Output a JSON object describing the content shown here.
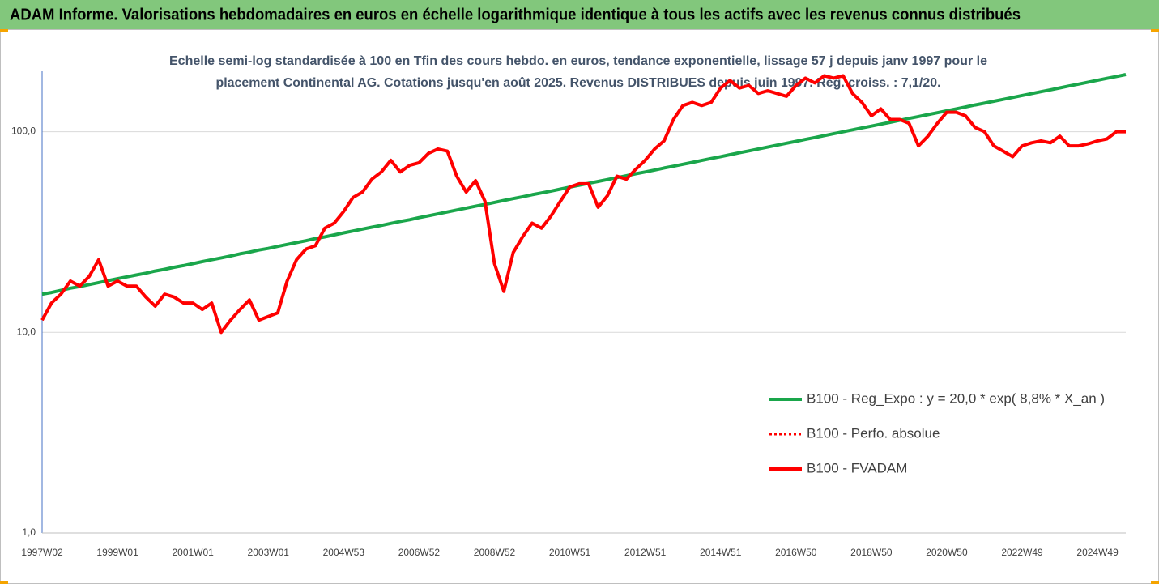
{
  "chart_data": {
    "type": "line",
    "title": "ADAM Informe. Valorisations hebdomadaires en euros en échelle logarithmique identique à tous les actifs avec les revenus connus distribués",
    "subtitle": [
      "Echelle semi-log standardisée à 100 en Tfin des cours hebdo. en euros, tendance exponentielle, lissage 57 j depuis janv 1997 pour le",
      "placement Continental AG. Cotations jusqu'en août 2025. Revenus DISTRIBUES depuis juin 1997. Reg. croiss. : 7,1/20."
    ],
    "categories": [
      "1997W02",
      null,
      null,
      null,
      null,
      null,
      null,
      null,
      "1999W01",
      null,
      null,
      null,
      null,
      null,
      null,
      null,
      "2001W01",
      null,
      null,
      null,
      null,
      null,
      null,
      null,
      "2003W01",
      null,
      null,
      null,
      null,
      null,
      null,
      null,
      "2004W53",
      null,
      null,
      null,
      null,
      null,
      null,
      null,
      "2006W52",
      null,
      null,
      null,
      null,
      null,
      null,
      null,
      "2008W52",
      null,
      null,
      null,
      null,
      null,
      null,
      null,
      "2010W51",
      null,
      null,
      null,
      null,
      null,
      null,
      null,
      "2012W51",
      null,
      null,
      null,
      null,
      null,
      null,
      null,
      "2014W51",
      null,
      null,
      null,
      null,
      null,
      null,
      null,
      "2016W50",
      null,
      null,
      null,
      null,
      null,
      null,
      null,
      "2018W50",
      null,
      null,
      null,
      null,
      null,
      null,
      null,
      "2020W50",
      null,
      null,
      null,
      null,
      null,
      null,
      null,
      "2022W49",
      null,
      null,
      null,
      null,
      null,
      null,
      null,
      "2024W49",
      null,
      null,
      null
    ],
    "log_scale": true,
    "grid": true,
    "legend_position": "right",
    "ylim": [
      1,
      200
    ],
    "yticks": [
      {
        "value": 1,
        "label": "1,0"
      },
      {
        "value": 10,
        "label": "10,0"
      },
      {
        "value": 100,
        "label": "100,0"
      }
    ],
    "series": [
      {
        "name": "B100 - Reg_Expo : y = 20,0 * exp( 8,8% *  X_an )",
        "color": "#1aa64b",
        "line_style": "solid",
        "values": [
          15.5,
          15.8,
          16.2,
          16.6,
          16.9,
          17.3,
          17.7,
          18.1,
          18.5,
          18.9,
          19.3,
          19.7,
          20.2,
          20.6,
          21.1,
          21.5,
          22.0,
          22.5,
          23.0,
          23.5,
          24.0,
          24.6,
          25.1,
          25.7,
          26.2,
          26.8,
          27.4,
          28.0,
          28.6,
          29.3,
          29.9,
          30.6,
          31.3,
          32.0,
          32.7,
          33.4,
          34.1,
          34.9,
          35.7,
          36.4,
          37.3,
          38.1,
          38.9,
          39.8,
          40.7,
          41.6,
          42.5,
          43.4,
          44.4,
          45.4,
          46.4,
          47.4,
          48.5,
          49.5,
          50.6,
          51.7,
          52.9,
          54.1,
          55.3,
          56.5,
          57.7,
          59.0,
          60.3,
          61.7,
          63.0,
          64.4,
          65.9,
          67.3,
          68.8,
          70.3,
          71.9,
          73.5,
          75.1,
          76.8,
          78.5,
          80.2,
          82.0,
          83.8,
          85.7,
          87.6,
          89.5,
          91.5,
          93.5,
          95.6,
          97.7,
          99.9,
          102.1,
          104.4,
          106.6,
          109.0,
          111.4,
          113.9,
          116.4,
          119.0,
          121.6,
          124.3,
          127.1,
          129.9,
          132.8,
          135.8,
          138.7,
          141.8,
          144.9,
          148.1,
          151.4,
          154.8,
          158.2,
          161.7,
          165.3,
          169.0,
          172.7,
          176.6,
          180.4,
          184.4,
          188.5,
          192.7
        ]
      },
      {
        "name": "B100 - Perfo. absolue",
        "color": "#ff0000",
        "line_style": "dotted",
        "values": [
          11.5,
          14,
          15.5,
          18,
          17,
          19,
          23,
          17,
          18,
          17,
          17,
          15,
          13.5,
          15.5,
          15,
          14,
          14,
          13,
          14,
          10,
          11.5,
          13,
          14.5,
          11.5,
          12,
          12.5,
          18,
          23,
          26,
          27,
          33,
          35,
          40,
          47,
          50,
          58,
          63,
          72,
          63,
          68,
          70,
          78,
          82,
          80,
          60,
          50,
          57,
          45,
          22,
          16,
          25,
          30,
          35,
          33,
          38,
          45,
          53,
          55,
          55,
          42,
          48,
          60,
          58,
          65,
          72,
          82,
          90,
          115,
          135,
          140,
          135,
          140,
          165,
          180,
          165,
          170,
          155,
          160,
          155,
          150,
          170,
          185,
          175,
          190,
          185,
          190,
          155,
          140,
          120,
          130,
          115,
          115,
          110,
          85,
          95,
          110,
          125,
          125,
          120,
          105,
          100,
          85,
          80,
          75,
          85,
          88,
          90,
          88,
          95,
          85,
          85,
          87,
          90,
          92,
          100,
          100
        ]
      },
      {
        "name": "B100 - FVADAM",
        "color": "#ff0000",
        "line_style": "solid",
        "values": [
          11.5,
          14,
          15.5,
          18,
          17,
          19,
          23,
          17,
          18,
          17,
          17,
          15,
          13.5,
          15.5,
          15,
          14,
          14,
          13,
          14,
          10,
          11.5,
          13,
          14.5,
          11.5,
          12,
          12.5,
          18,
          23,
          26,
          27,
          33,
          35,
          40,
          47,
          50,
          58,
          63,
          72,
          63,
          68,
          70,
          78,
          82,
          80,
          60,
          50,
          57,
          45,
          22,
          16,
          25,
          30,
          35,
          33,
          38,
          45,
          53,
          55,
          55,
          42,
          48,
          60,
          58,
          65,
          72,
          82,
          90,
          115,
          135,
          140,
          135,
          140,
          165,
          180,
          165,
          170,
          155,
          160,
          155,
          150,
          170,
          185,
          175,
          190,
          185,
          190,
          155,
          140,
          120,
          130,
          115,
          115,
          110,
          85,
          95,
          110,
          125,
          125,
          120,
          105,
          100,
          85,
          80,
          75,
          85,
          88,
          90,
          88,
          95,
          85,
          85,
          87,
          90,
          92,
          100,
          100
        ]
      }
    ]
  }
}
